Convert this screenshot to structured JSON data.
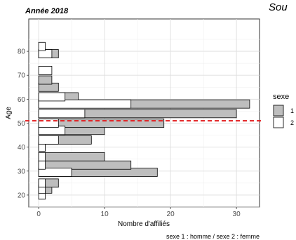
{
  "chart_data": {
    "type": "bar",
    "orientation": "horizontal",
    "mode": "overlay",
    "title": "Année 2018",
    "partial_text": "Sou",
    "xlabel": "Nombre d'affiliés",
    "ylabel": "Age",
    "caption": "sexe 1 : homme / sexe 2 : femme",
    "xlim": [
      -1.5,
      33.5
    ],
    "ylim": [
      15,
      93.5
    ],
    "x_ticks": [
      0,
      10,
      20,
      30
    ],
    "y_ticks": [
      20,
      30,
      40,
      50,
      60,
      70,
      80
    ],
    "bin_width": 3.5,
    "bins": [
      20,
      22.5,
      25,
      29.5,
      32.5,
      36,
      40,
      43,
      47,
      50,
      54,
      58,
      61,
      65,
      68,
      72,
      79,
      82
    ],
    "legend": {
      "title": "sexe",
      "position": "right"
    },
    "series": [
      {
        "name": "1",
        "color": "#bebebe",
        "values": [
          0,
          2,
          3,
          18,
          14,
          10,
          1,
          8,
          10,
          19,
          30,
          32,
          6,
          3,
          2,
          0,
          3,
          0
        ]
      },
      {
        "name": "2",
        "color": "#ffffff",
        "values": [
          1,
          1,
          1,
          5,
          1,
          1,
          1,
          3,
          4,
          3,
          7,
          14,
          4,
          0,
          0,
          2,
          2,
          1
        ]
      }
    ],
    "reference_line": {
      "axis": "y",
      "value": 51,
      "color": "#e31a1c",
      "style": "dashed"
    },
    "grid": true
  }
}
